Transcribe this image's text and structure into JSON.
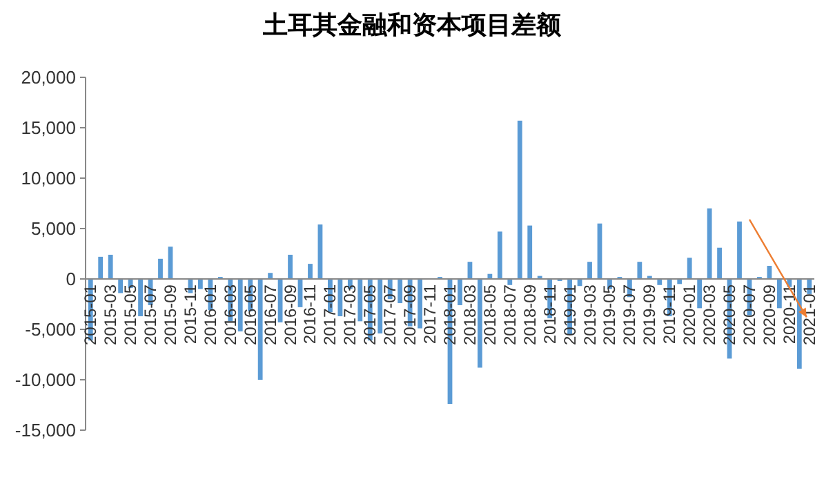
{
  "chart_data": {
    "type": "bar",
    "title": "土耳其金融和资本项目差额",
    "categories": [
      "2015-01",
      null,
      "2015-03",
      null,
      "2015-05",
      null,
      "2015-07",
      null,
      "2015-09",
      null,
      "2015-11",
      null,
      "2016-01",
      null,
      "2016-03",
      null,
      "2016-05",
      null,
      "2016-07",
      null,
      "2016-09",
      null,
      "2016-11",
      null,
      "2017-01",
      null,
      "2017-03",
      null,
      "2017-05",
      null,
      "2017-07",
      null,
      "2017-09",
      null,
      "2017-11",
      null,
      "2018-01",
      null,
      "2018-03",
      null,
      "2018-05",
      null,
      "2018-07",
      null,
      "2018-09",
      null,
      "2018-11",
      null,
      "2019-01",
      null,
      "2019-03",
      null,
      "2019-05",
      null,
      "2019-07",
      null,
      "2019-09",
      null,
      "2019-11",
      null,
      "2020-01",
      null,
      "2020-03",
      null,
      "2020-05",
      null,
      "2020-07",
      null,
      "2020-09",
      null,
      "2020-11",
      null,
      "2021-01"
    ],
    "values": [
      -6100,
      2200,
      2400,
      -1400,
      -900,
      -3700,
      -2600,
      2000,
      3200,
      null,
      -1400,
      -1000,
      -3100,
      200,
      -4200,
      -5200,
      -3200,
      -10000,
      600,
      -4300,
      2400,
      -2800,
      1500,
      5400,
      -3300,
      -3700,
      -1000,
      -4200,
      -6100,
      -5400,
      -2000,
      -2400,
      -4700,
      -4900,
      null,
      200,
      -12400,
      -2600,
      1700,
      -8800,
      500,
      4700,
      -600,
      15700,
      5300,
      300,
      -3900,
      -200,
      -5500,
      -700,
      1700,
      5500,
      -1000,
      200,
      -1800,
      1700,
      300,
      -600,
      -3700,
      -500,
      2100,
      -2900,
      7000,
      3100,
      -7900,
      5700,
      -3600,
      200,
      1300,
      -2900,
      -800,
      -8900,
      -1500
    ],
    "color": "#5b9bd5",
    "ylim": [
      -15000,
      20000
    ],
    "yticks": [
      {
        "value": -15000,
        "label": "-15,000"
      },
      {
        "value": -10000,
        "label": "-10,000"
      },
      {
        "value": -5000,
        "label": "-5,000"
      },
      {
        "value": 0,
        "label": "0"
      },
      {
        "value": 5000,
        "label": "5,000"
      },
      {
        "value": 10000,
        "label": "10,000"
      },
      {
        "value": 15000,
        "label": "15,000"
      },
      {
        "value": 20000,
        "label": "20,000"
      }
    ]
  }
}
